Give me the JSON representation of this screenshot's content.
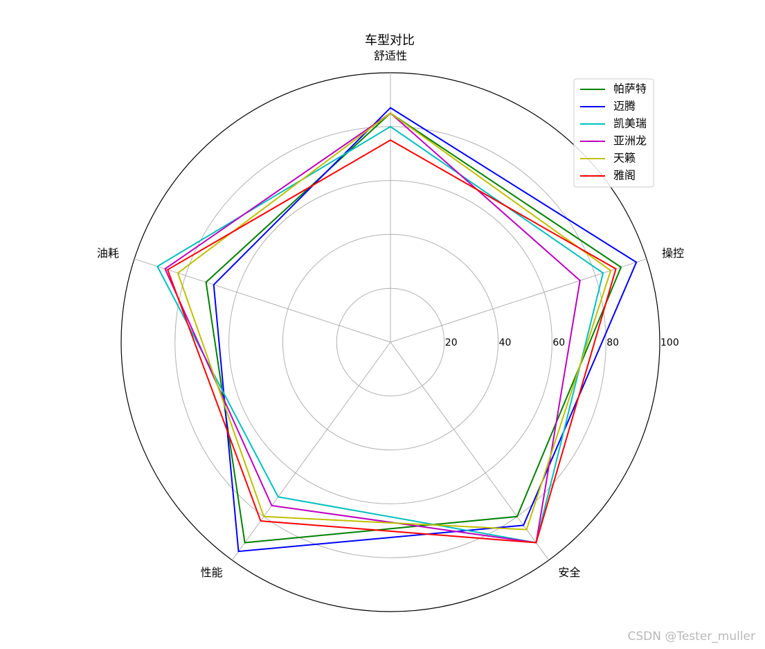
{
  "chart_data": {
    "type": "radar",
    "title": "车型对比",
    "axes": [
      "舒适性",
      "操控",
      "安全",
      "性能",
      "油耗"
    ],
    "rlim": [
      0,
      100
    ],
    "rticks": [
      20,
      40,
      60,
      80,
      100
    ],
    "grid": true,
    "legend_position": "top-right",
    "series": [
      {
        "name": "帕萨特",
        "color": "#008000",
        "values": [
          85,
          90,
          80,
          92,
          72
        ]
      },
      {
        "name": "迈腾",
        "color": "#0000ff",
        "values": [
          87,
          96,
          84,
          96,
          69
        ]
      },
      {
        "name": "凯美瑞",
        "color": "#00bfbf",
        "values": [
          80,
          83,
          92,
          71,
          91
        ]
      },
      {
        "name": "亚洲龙",
        "color": "#bf00bf",
        "values": [
          85,
          74,
          92,
          75,
          88
        ]
      },
      {
        "name": "天籁",
        "color": "#bfbf00",
        "values": [
          85,
          86,
          86,
          80,
          83
        ]
      },
      {
        "name": "雅阁",
        "color": "#ff0000",
        "values": [
          75,
          88,
          92,
          82,
          87
        ]
      }
    ]
  },
  "watermark": "CSDN @Tester_muller"
}
